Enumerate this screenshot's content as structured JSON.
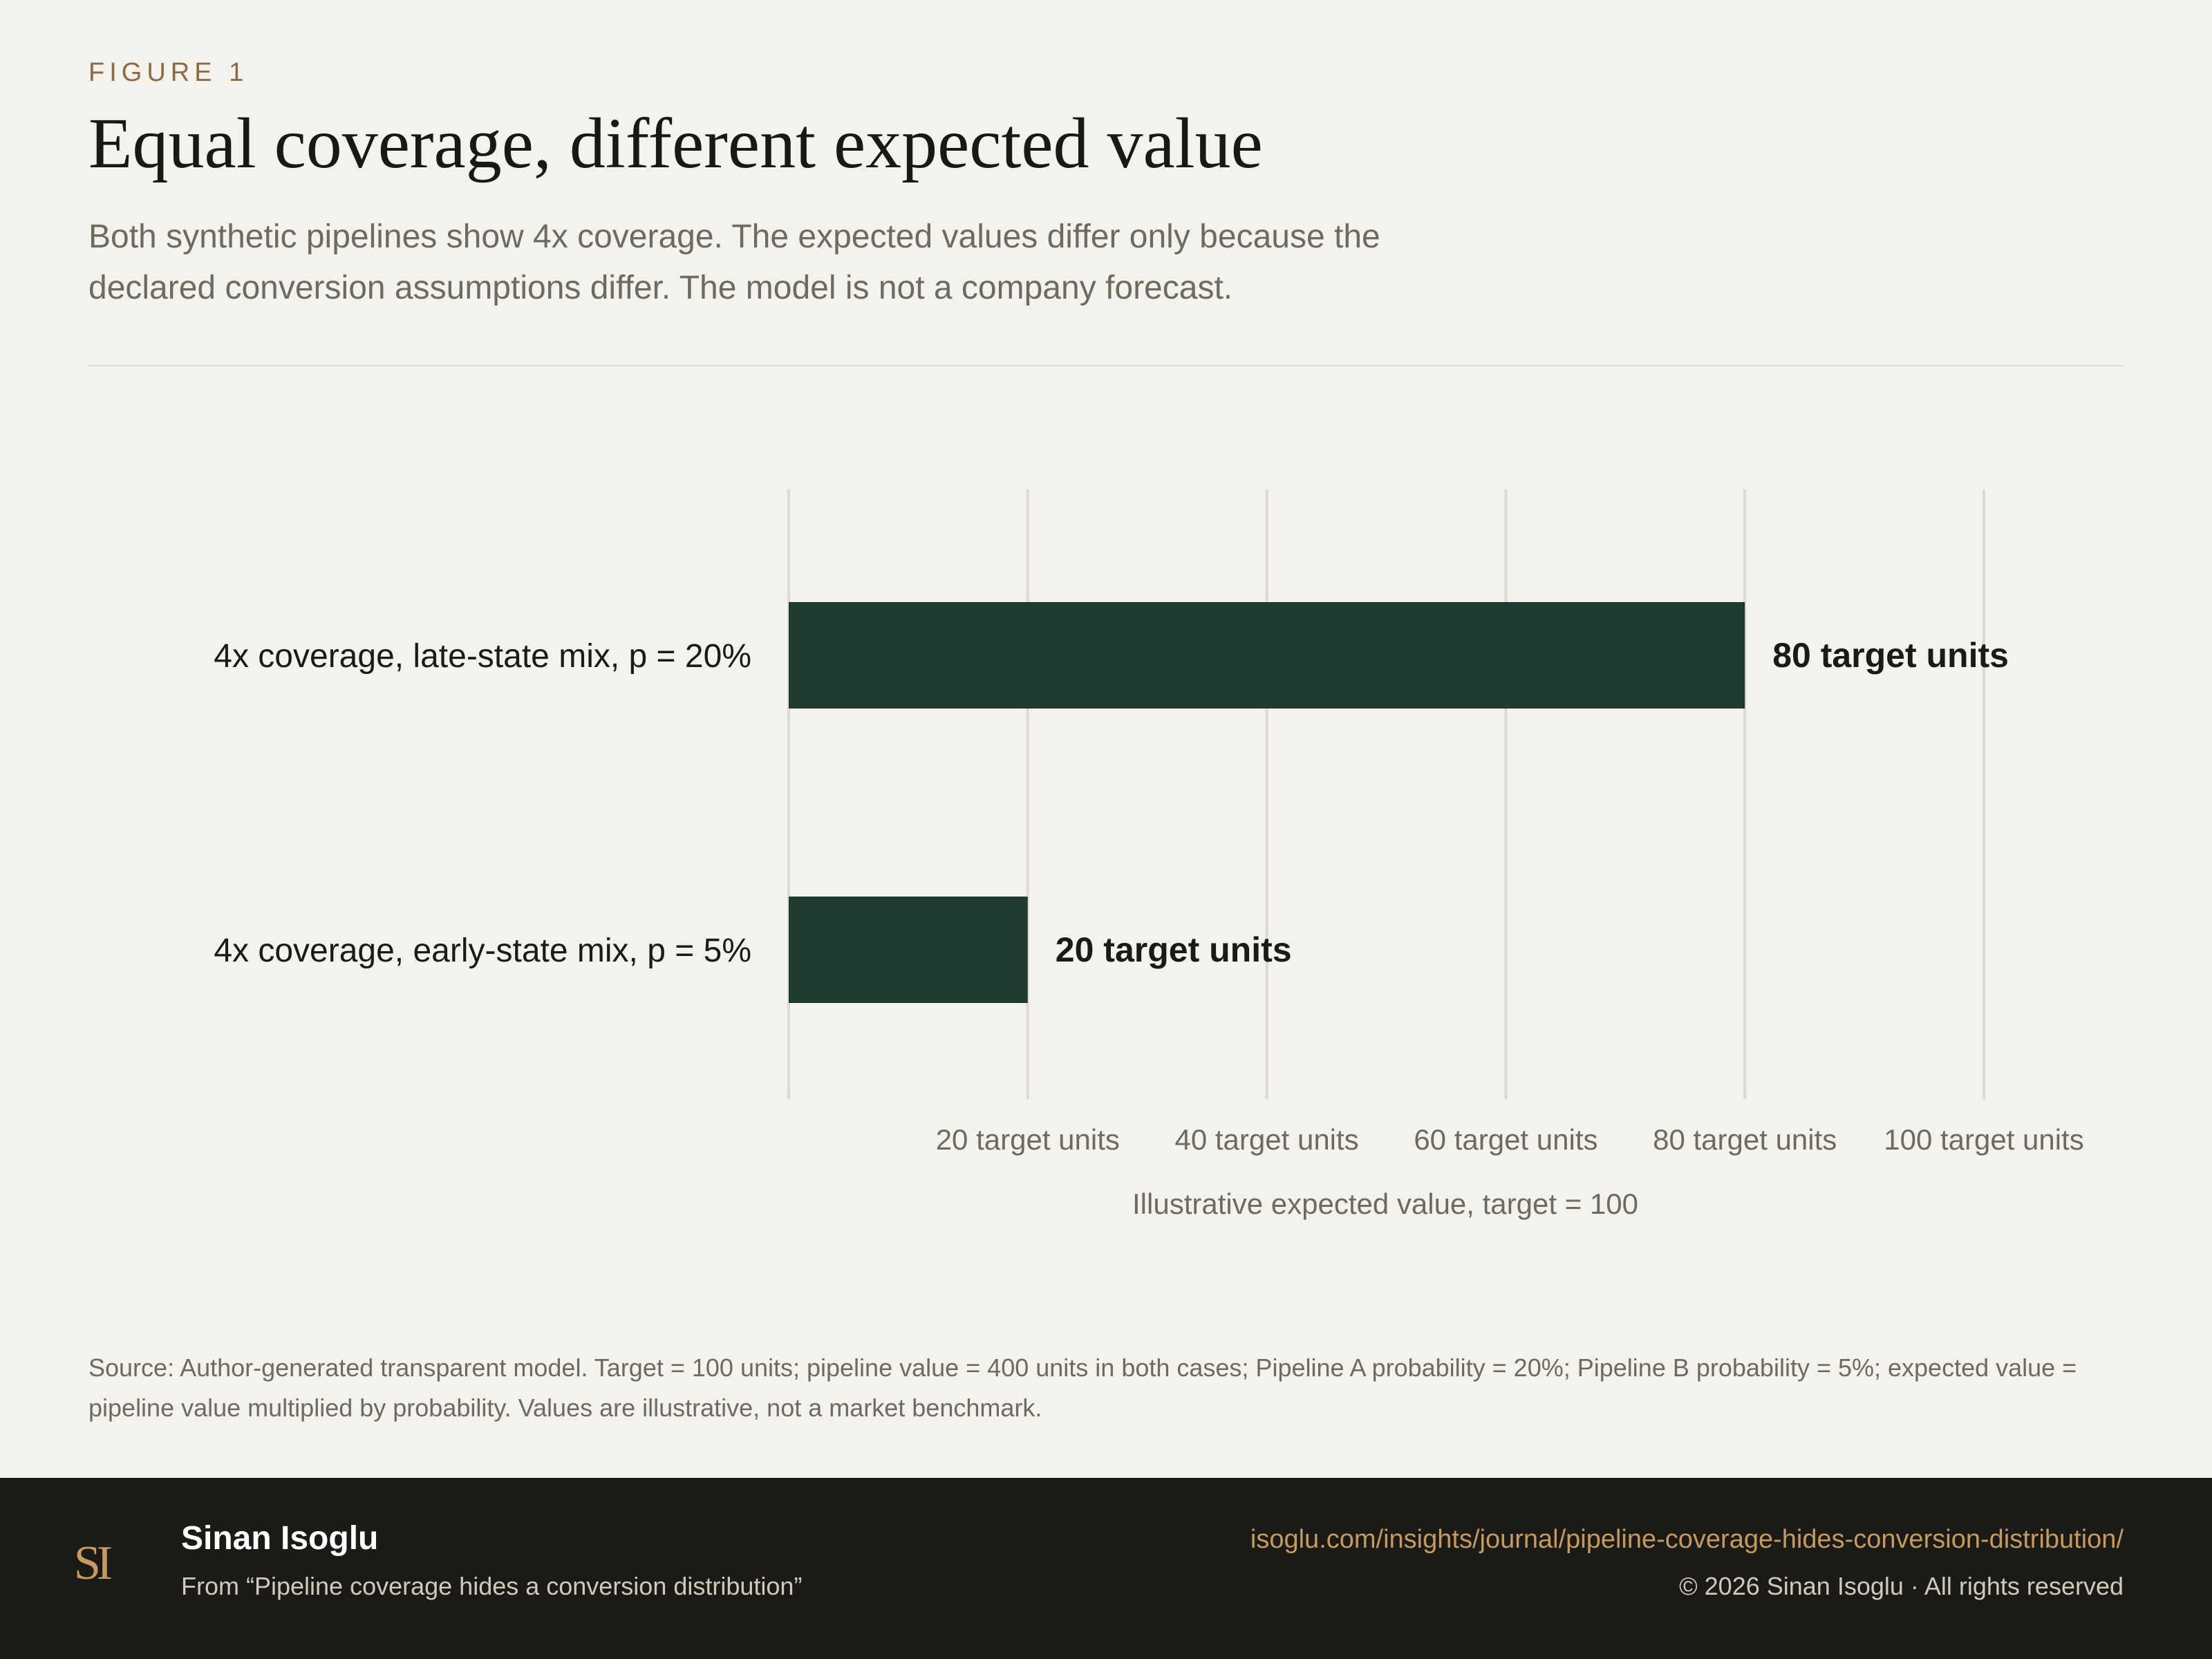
{
  "header": {
    "eyebrow": "FIGURE 1",
    "title": "Equal coverage, different expected value",
    "subtitle": "Both synthetic pipelines show 4x coverage. The expected values differ only because the declared conversion assumptions differ. The model is not a company forecast."
  },
  "chart_data": {
    "type": "bar",
    "orientation": "horizontal",
    "categories": [
      "4x coverage, late-state mix, p = 20%",
      "4x coverage, early-state mix, p = 5%"
    ],
    "values": [
      80,
      20
    ],
    "data_labels": [
      "80 target units",
      "20 target units"
    ],
    "xlabel": "Illustrative expected value, target = 100",
    "xlim": [
      0,
      100
    ],
    "x_ticks": [
      20,
      40,
      60,
      80,
      100
    ],
    "x_tick_labels": [
      "20 target units",
      "40 target units",
      "60 target units",
      "80 target units",
      "100 target units"
    ],
    "grid": "vertical",
    "legend": "none",
    "colors": {
      "bar": "#1f3a2e",
      "grid": "#dddad1",
      "label": "#1a1a18",
      "tick": "#6f6a5f"
    }
  },
  "source": "Source: Author-generated transparent model. Target = 100 units; pipeline value = 400 units in both cases; Pipeline A probability = 20%; Pipeline B probability = 5%; expected value = pipeline value multiplied by probability. Values are illustrative, not a market benchmark.",
  "footer": {
    "author": "Sinan Isoglu",
    "article": "From “Pipeline coverage hides a conversion distribution”",
    "url": "isoglu.com/insights/journal/pipeline-coverage-hides-conversion-distribution/",
    "copyright": "© 2026 Sinan Isoglu · All rights reserved",
    "monogram": "SI",
    "logo_icon": "monogram-logo",
    "accent": "#c59a60",
    "background": "#1b1a16"
  }
}
